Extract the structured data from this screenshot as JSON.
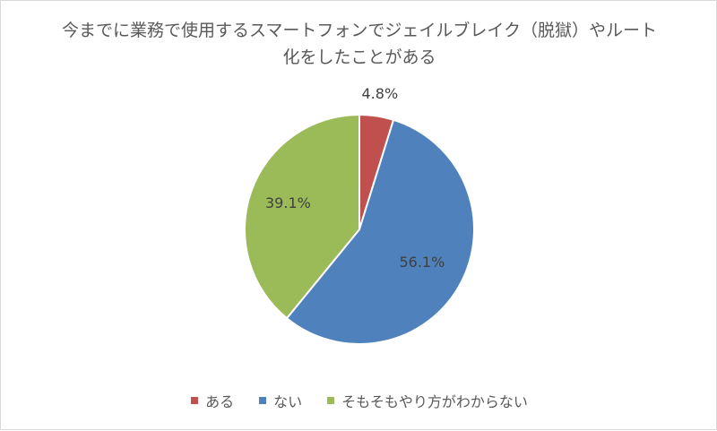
{
  "chart_data": {
    "type": "pie",
    "title": "今までに業務で使用するスマートフォンでジェイルブレイク（脱獄）やルート化をしたことがある",
    "categories": [
      "ある",
      "ない",
      "そもそもやり方がわからない"
    ],
    "values": [
      4.8,
      56.1,
      39.1
    ],
    "data_labels": [
      "4.8%",
      "56.1%",
      "39.1%"
    ],
    "colors": [
      "#c0504d",
      "#4f81bd",
      "#9bbb59"
    ],
    "legend_position": "bottom"
  }
}
